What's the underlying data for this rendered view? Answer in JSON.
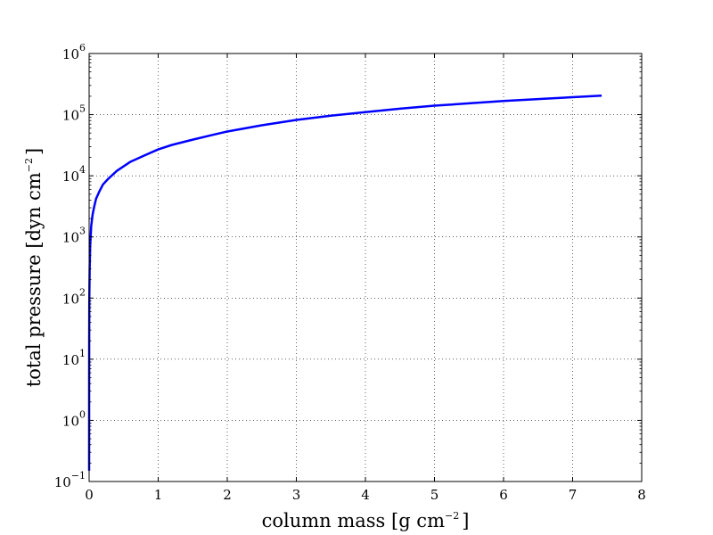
{
  "chart_data": {
    "type": "line",
    "title": "",
    "xlabel": "column mass [g cm",
    "xlabel_exp": "−2",
    "xlabel_close": "]",
    "ylabel": "total pressure [dyn cm",
    "ylabel_exp": "−2",
    "ylabel_close": "]",
    "xlim": [
      0,
      8
    ],
    "ylim": [
      0.1,
      1000000
    ],
    "yscale": "log",
    "grid": true,
    "x_ticks": [
      "0",
      "1",
      "2",
      "3",
      "4",
      "5",
      "6",
      "7",
      "8"
    ],
    "y_ticks": [
      {
        "value": 0.1,
        "base": "10",
        "exp": "−1"
      },
      {
        "value": 1,
        "base": "10",
        "exp": "0"
      },
      {
        "value": 10,
        "base": "10",
        "exp": "1"
      },
      {
        "value": 100,
        "base": "10",
        "exp": "2"
      },
      {
        "value": 1000,
        "base": "10",
        "exp": "3"
      },
      {
        "value": 10000,
        "base": "10",
        "exp": "4"
      },
      {
        "value": 100000,
        "base": "10",
        "exp": "5"
      },
      {
        "value": 1000000,
        "base": "10",
        "exp": "6"
      }
    ],
    "series": [
      {
        "color": "#0000ff",
        "x": [
          0.0,
          0.0002,
          0.001,
          0.003,
          0.008,
          0.015,
          0.03,
          0.05,
          0.07,
          0.1,
          0.15,
          0.2,
          0.28,
          0.4,
          0.6,
          0.8,
          1.0,
          1.2,
          1.5,
          1.8,
          2.0,
          2.5,
          3.0,
          3.5,
          4.0,
          4.5,
          5.0,
          5.5,
          6.0,
          6.5,
          7.0,
          7.42
        ],
        "y": [
          0.15,
          3,
          20,
          100,
          300,
          700,
          1500,
          2300,
          3000,
          4200,
          5600,
          7200,
          9000,
          12000,
          17000,
          21500,
          27000,
          32000,
          39000,
          47000,
          53000,
          67000,
          82000,
          96000,
          110000,
          125000,
          140000,
          153000,
          167000,
          180000,
          193000,
          205000
        ]
      }
    ]
  }
}
